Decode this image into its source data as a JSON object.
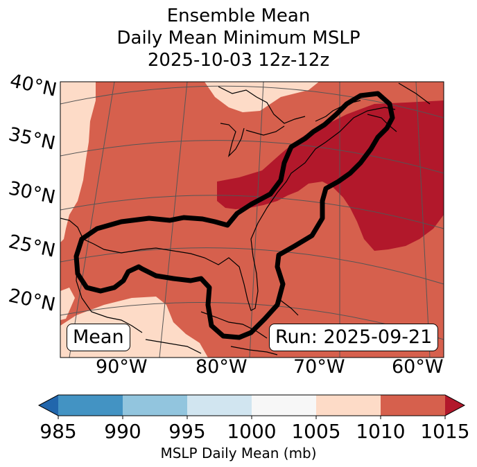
{
  "title": {
    "line1": "Ensemble Mean",
    "line2": "Daily Mean Minimum MSLP",
    "line3": "2025-10-03 12z-12z"
  },
  "map": {
    "lat_labels": [
      "40°N",
      "35°N",
      "30°N",
      "25°N",
      "20°N"
    ],
    "lon_labels": [
      "90°W",
      "80°W",
      "70°W",
      "60°W"
    ],
    "mean_box": "Mean",
    "run_box": "Run: 2025-09-21",
    "contour_color": "#000000",
    "coastline_color": "#000000",
    "grid_color": "#555555"
  },
  "colorbar": {
    "label": "MSLP Daily Mean (mb)",
    "ticks": [
      "985",
      "990",
      "995",
      "1000",
      "1005",
      "1010",
      "1015"
    ],
    "colors": [
      "#4393c3",
      "#92c5de",
      "#d1e5f0",
      "#f7f7f7",
      "#fddbc7",
      "#d6604d"
    ],
    "under_color": "#2166ac",
    "over_color": "#b2182b"
  },
  "fill_colors": {
    "c1005": "#fddbc7",
    "c1010": "#d6604d",
    "c1015": "#b2182b"
  }
}
